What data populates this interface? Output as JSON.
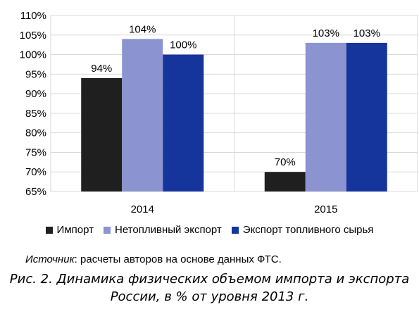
{
  "chart_data": {
    "type": "bar",
    "categories": [
      "2014",
      "2015"
    ],
    "series": [
      {
        "name": "Импорт",
        "color": "#1f1f1f",
        "values": [
          94,
          70
        ],
        "labels": [
          "94%",
          "70%"
        ]
      },
      {
        "name": "Нетопливный экспорт",
        "color": "#8b93d1",
        "values": [
          104,
          103
        ],
        "labels": [
          "104%",
          "103%"
        ]
      },
      {
        "name": "Экспорт топливного сырья",
        "color": "#15359c",
        "values": [
          100,
          103
        ],
        "labels": [
          "100%",
          "103%"
        ]
      }
    ],
    "ylim": [
      65,
      110
    ],
    "yticks": [
      "65%",
      "70%",
      "75%",
      "80%",
      "85%",
      "90%",
      "95%",
      "100%",
      "105%",
      "110%"
    ],
    "grid": true,
    "legend": "bottom"
  },
  "source": {
    "label": "Источник",
    "text": ": расчеты авторов на основе данных ФТС."
  },
  "caption": {
    "line1": "Рис. 2. Динамика физических объемом импорта и экспорта",
    "line2": "России, в % от уровня 2013 г."
  }
}
